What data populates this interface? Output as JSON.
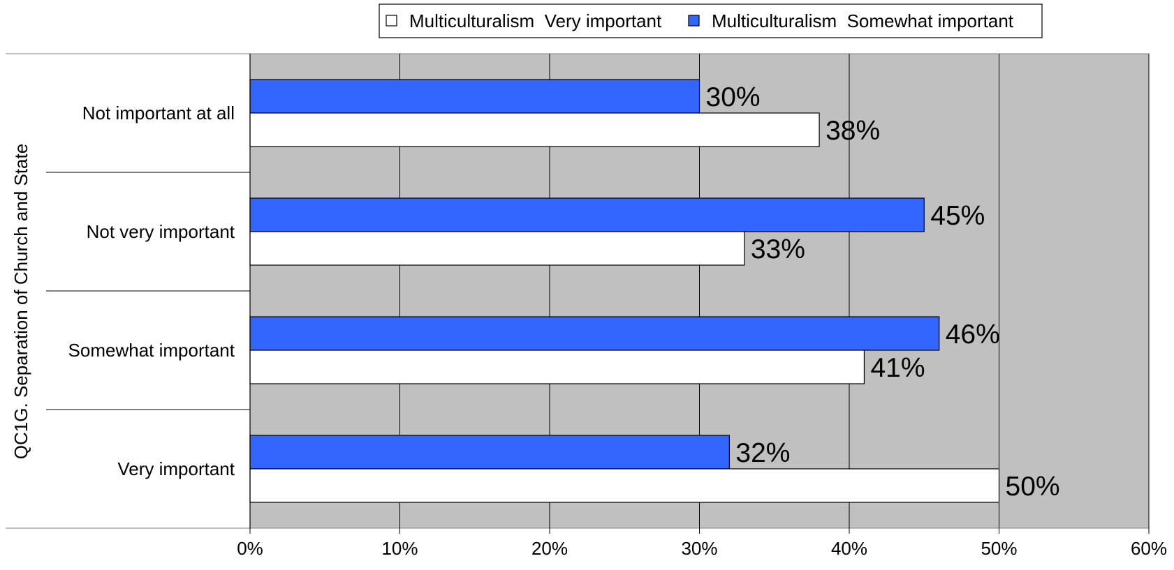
{
  "chart_data": {
    "type": "bar",
    "orientation": "horizontal",
    "title": "",
    "xlabel": "",
    "ylabel": "QC1G. Separation of Church and State",
    "categories": [
      "Not important at all",
      "Not very important",
      "Somewhat important",
      "Very important"
    ],
    "series": [
      {
        "name": "Multiculturalism  Somewhat important",
        "color": "#3366ff",
        "values": [
          30,
          45,
          46,
          32
        ]
      },
      {
        "name": "Multiculturalism  Very important",
        "color": "#ffffff",
        "values": [
          38,
          33,
          41,
          50
        ]
      }
    ],
    "legend_order": [
      "Multiculturalism  Very important",
      "Multiculturalism  Somewhat important"
    ],
    "value_suffix": "%",
    "xlim": [
      0,
      60
    ],
    "xticks": [
      0,
      10,
      20,
      30,
      40,
      50,
      60
    ],
    "xtick_labels": [
      "0%",
      "10%",
      "20%",
      "30%",
      "40%",
      "50%",
      "60%"
    ],
    "grid": "vertical",
    "legend_position": "top",
    "plot_background": "#c0c0c0"
  }
}
